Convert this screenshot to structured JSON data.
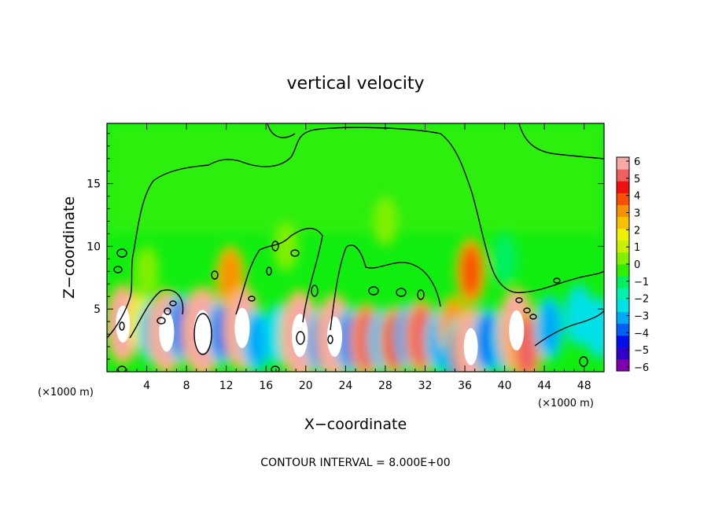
{
  "chart_data": {
    "type": "heatmap",
    "title": "vertical velocity",
    "xlabel": "X−coordinate",
    "ylabel": "Z−coordinate",
    "x_unit_label": "(×1000 m)",
    "z_unit_label": "(×1000 m)",
    "footer": "CONTOUR INTERVAL = 8.000E+00",
    "xlim": [
      0,
      50
    ],
    "ylim": [
      0,
      19.8
    ],
    "x_ticks": [
      4,
      8,
      12,
      16,
      20,
      24,
      28,
      32,
      36,
      40,
      44,
      48
    ],
    "y_ticks": [
      5,
      10,
      15
    ],
    "colorbar": {
      "ticks": [
        "6",
        "5",
        "4",
        "3",
        "2",
        "1",
        "0",
        "−1",
        "−2",
        "−3",
        "−4",
        "−5",
        "−6"
      ],
      "range": [
        -6,
        6
      ],
      "colors": [
        "#8000b0",
        "#3000c8",
        "#0010e8",
        "#0060f8",
        "#00a8f8",
        "#00e0e8",
        "#00f0b0",
        "#00f060",
        "#30f000",
        "#80f000",
        "#c8f000",
        "#f0f000",
        "#f8c000",
        "#f89000",
        "#f85000",
        "#f01010",
        "#f06060",
        "#f8a8a8"
      ]
    },
    "cells": [
      {
        "x": 1.5,
        "z": 4.0,
        "w": 3.5
      },
      {
        "x": 1.6,
        "z": 3.8,
        "w": 6.0
      },
      {
        "x": 3.3,
        "z": 4.0,
        "w": 1.5
      },
      {
        "x": 4.6,
        "z": 3.2,
        "w": -3.0
      },
      {
        "x": 6.0,
        "z": 3.2,
        "w": 7.0
      },
      {
        "x": 7.5,
        "z": 3.5,
        "w": -4.0
      },
      {
        "x": 9.6,
        "z": 3.2,
        "w": 12.0
      },
      {
        "x": 11.6,
        "z": 3.2,
        "w": -3.5
      },
      {
        "x": 12.4,
        "z": 7.5,
        "w": 3.0
      },
      {
        "x": 13.6,
        "z": 3.5,
        "w": 7.0
      },
      {
        "x": 15.0,
        "z": 2.5,
        "w": -3.0
      },
      {
        "x": 17.3,
        "z": 3.0,
        "w": -2.5
      },
      {
        "x": 19.4,
        "z": 2.9,
        "w": 8.0
      },
      {
        "x": 21.5,
        "z": 2.5,
        "w": -3.5
      },
      {
        "x": 22.9,
        "z": 2.8,
        "w": 7.0
      },
      {
        "x": 24.5,
        "z": 2.5,
        "w": -3.5
      },
      {
        "x": 26.1,
        "z": 2.5,
        "w": 5.0
      },
      {
        "x": 27.8,
        "z": 2.5,
        "w": -3.0
      },
      {
        "x": 29.0,
        "z": 2.5,
        "w": 4.0
      },
      {
        "x": 30.4,
        "z": 2.8,
        "w": -3.5
      },
      {
        "x": 31.6,
        "z": 2.8,
        "w": 5.0
      },
      {
        "x": 33.5,
        "z": 2.5,
        "w": -3.0
      },
      {
        "x": 34.8,
        "z": 3.5,
        "w": 3.0
      },
      {
        "x": 35.6,
        "z": 1.5,
        "w": -5.0
      },
      {
        "x": 36.6,
        "z": 8.0,
        "w": 3.5
      },
      {
        "x": 36.6,
        "z": 2.0,
        "w": 6.0
      },
      {
        "x": 38.3,
        "z": 2.5,
        "w": -3.5
      },
      {
        "x": 40.0,
        "z": 2.5,
        "w": -3.0
      },
      {
        "x": 41.2,
        "z": 3.3,
        "w": 7.0
      },
      {
        "x": 42.2,
        "z": 2.0,
        "w": 5.0
      },
      {
        "x": 44.5,
        "z": 3.5,
        "w": -3.0
      },
      {
        "x": 47.5,
        "z": 4.5,
        "w": -2.5
      },
      {
        "x": 49.5,
        "z": 3.5,
        "w": -2.5
      },
      {
        "x": 18.0,
        "z": 10.0,
        "w": 0.5
      },
      {
        "x": 28.0,
        "z": 12.0,
        "w": 0.4
      },
      {
        "x": 40.0,
        "z": 9.0,
        "w": -0.8
      },
      {
        "x": 4.0,
        "z": 8.0,
        "w": 0.6
      }
    ]
  }
}
